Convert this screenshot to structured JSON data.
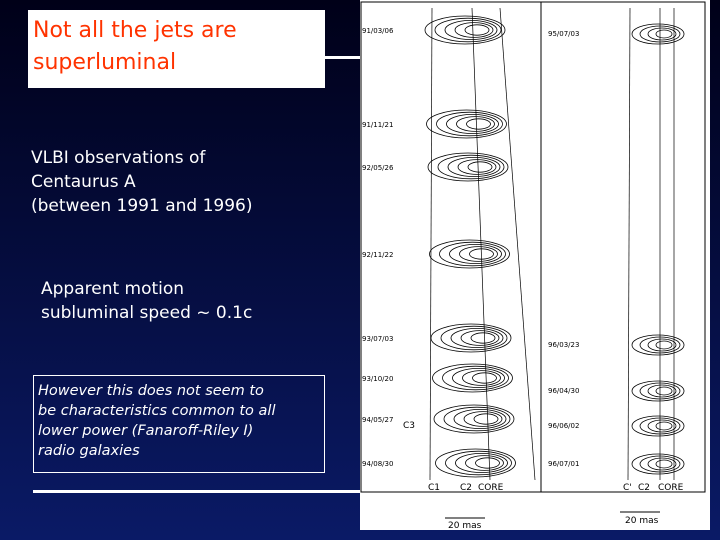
{
  "slide": {
    "title": [
      "Not all the jets are",
      "superluminal"
    ],
    "observations": [
      "VLBI observations of",
      "Centaurus A",
      "(between 1991 and 1996)"
    ],
    "motion": [
      "Apparent motion",
      "subluminal speed ~ 0.1c"
    ],
    "note": [
      "However this does not seem to",
      "be characteristics common to all",
      "lower power (Fanaroff-Riley I)",
      "radio galaxies"
    ]
  },
  "figure": {
    "left_dates": [
      "91/03/06",
      "91/11/21",
      "92/05/26",
      "92/11/22",
      "93/07/03",
      "93/10/20",
      "94/05/27",
      "94/08/30"
    ],
    "right_dates": [
      "95/07/03",
      "96/03/23",
      "96/04/30",
      "96/06/02",
      "96/07/01"
    ],
    "left_components": [
      "C1",
      "C2",
      "CORE"
    ],
    "right_components": [
      "C'",
      "C2",
      "CORE"
    ],
    "feature_label": "C3",
    "left_scale": "20 mas",
    "right_scale": "20 mas"
  }
}
